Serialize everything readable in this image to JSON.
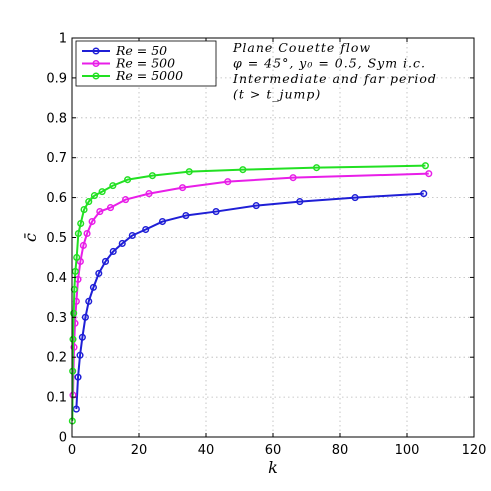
{
  "chart_data": {
    "type": "line",
    "xlabel": "k",
    "ylabel": "c̄",
    "xlim": [
      0,
      120
    ],
    "ylim": [
      0,
      1
    ],
    "xticks": [
      "0",
      "20",
      "40",
      "60",
      "80",
      "100",
      "120"
    ],
    "yticks": [
      "0",
      "0.1",
      "0.2",
      "0.3",
      "0.4",
      "0.5",
      "0.6",
      "0.7",
      "0.8",
      "0.9",
      "1"
    ],
    "grid": true,
    "legend_position": "top-left",
    "annotations": [
      "Plane Couette flow",
      "φ = 45°,  y₀ = 0.5,  Sym i.c.",
      "Intermediate and far period",
      "(t > t_jump)"
    ],
    "series": [
      {
        "name": "Re = 50",
        "color": "#1f1fd6",
        "x": [
          1.3,
          1.8,
          2.4,
          3.1,
          4.0,
          5.0,
          6.4,
          8.0,
          10.0,
          12.3,
          15.0,
          18.0,
          22.0,
          27.0,
          34.0,
          43.0,
          55.0,
          68.0,
          84.5,
          105.0
        ],
        "y": [
          0.07,
          0.15,
          0.205,
          0.25,
          0.3,
          0.34,
          0.375,
          0.41,
          0.44,
          0.465,
          0.485,
          0.505,
          0.52,
          0.54,
          0.555,
          0.565,
          0.58,
          0.59,
          0.6,
          0.61
        ]
      },
      {
        "name": "Re = 500",
        "color": "#e81ee8",
        "x": [
          0.3,
          0.6,
          0.9,
          1.3,
          1.8,
          2.5,
          3.4,
          4.5,
          6.0,
          8.3,
          11.5,
          16.0,
          23.0,
          33.0,
          46.5,
          66.0,
          106.5
        ],
        "y": [
          0.105,
          0.225,
          0.285,
          0.34,
          0.395,
          0.44,
          0.48,
          0.51,
          0.54,
          0.565,
          0.575,
          0.595,
          0.61,
          0.625,
          0.64,
          0.65,
          0.66
        ]
      },
      {
        "name": "Re = 5000",
        "color": "#22e022",
        "x": [
          0.1,
          0.2,
          0.3,
          0.5,
          0.7,
          1.0,
          1.4,
          1.9,
          2.6,
          3.6,
          5.0,
          6.7,
          9.0,
          12.2,
          16.6,
          24.0,
          35.0,
          51.0,
          73.0,
          105.5
        ],
        "y": [
          0.04,
          0.165,
          0.245,
          0.31,
          0.37,
          0.415,
          0.45,
          0.51,
          0.535,
          0.57,
          0.59,
          0.605,
          0.615,
          0.63,
          0.645,
          0.655,
          0.665,
          0.67,
          0.675,
          0.68
        ]
      }
    ]
  }
}
